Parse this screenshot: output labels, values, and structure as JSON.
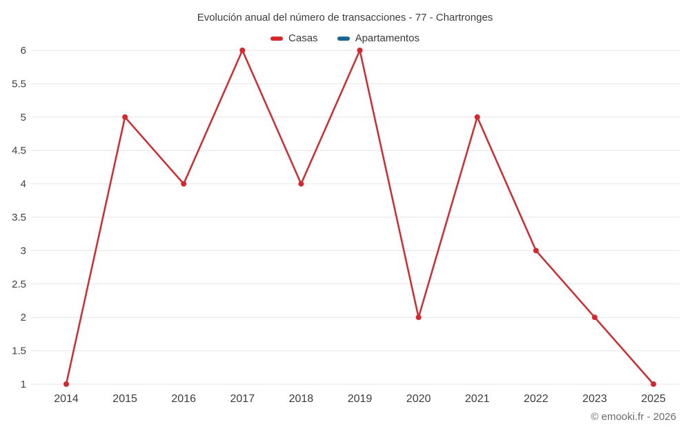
{
  "chart_data": {
    "type": "line",
    "title": "Evolución anual del número de transacciones - 77 - Chartronges",
    "categories": [
      "2014",
      "2015",
      "2016",
      "2017",
      "2018",
      "2019",
      "2020",
      "2021",
      "2022",
      "2023",
      "2025"
    ],
    "series": [
      {
        "name": "Casas",
        "color": "#d8262c",
        "values": [
          1,
          5,
          4,
          6,
          4,
          6,
          2,
          5,
          3,
          2,
          1
        ]
      },
      {
        "name": "Apartamentos",
        "color": "#17688e",
        "values": []
      }
    ],
    "ylim": [
      1,
      6
    ],
    "ytick_step": 0.5,
    "grid": "horizontal",
    "legend_position": "top",
    "xlabel": "",
    "ylabel": ""
  },
  "footer": {
    "copyright": "© emooki.fr - 2026"
  },
  "colors": {
    "gridline": "#e6e6e6",
    "tick_text": "#404040",
    "title_text": "#3c3c3c",
    "footer_text": "#6b6b6b"
  }
}
